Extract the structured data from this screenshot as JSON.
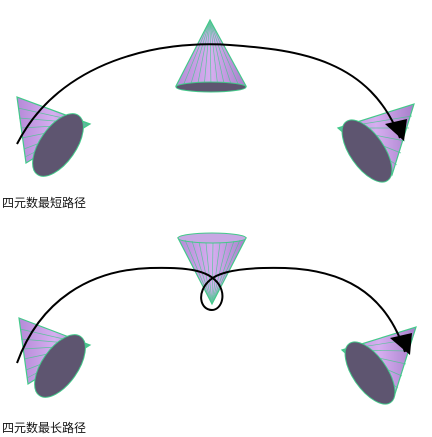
{
  "captions": {
    "shortest": "四元数最短路径",
    "longest": "四元数最长路径"
  },
  "colors": {
    "cone_fill": "#c79ae6",
    "cone_base": "#5e5570",
    "cone_lines": "#43c98a",
    "path": "#000000",
    "background": "#ffffff"
  }
}
